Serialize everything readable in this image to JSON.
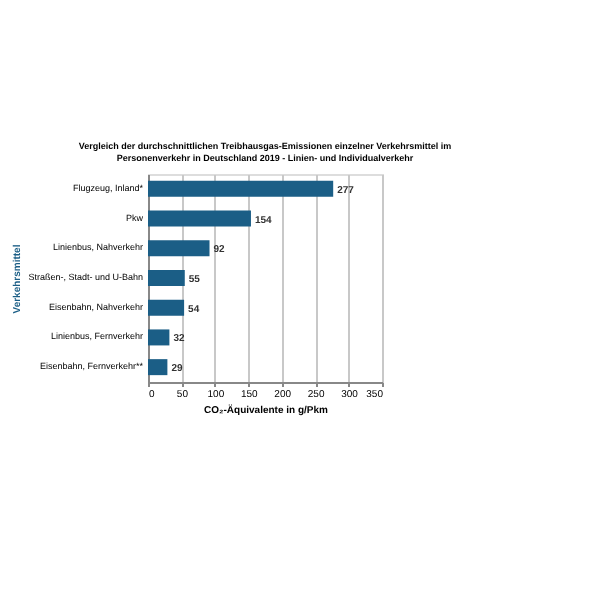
{
  "chart_data": {
    "type": "bar",
    "orientation": "horizontal",
    "title": "Vergleich der durchschnittlichen Treibhausgas-Emissionen einzelner Verkehrsmittel im Personenverkehr in Deutschland 2019 - Linien- und Individualverkehr",
    "categories": [
      "Flugzeug, Inland*",
      "Pkw",
      "Linienbus, Nahverkehr",
      "Straßen-, Stadt- und U-Bahn",
      "Eisenbahn, Nahverkehr",
      "Linienbus, Fernverkehr",
      "Eisenbahn, Fernverkehr**"
    ],
    "values": [
      277,
      154,
      92,
      55,
      54,
      32,
      29
    ],
    "color": "#1b5e86",
    "data_labels": true,
    "xlim": [
      0,
      350
    ],
    "xticks": [
      0,
      50,
      100,
      150,
      200,
      250,
      300,
      350
    ],
    "grid": "x",
    "xlabel": "CO₂-Äquivalente in g/Pkm",
    "ylabel": "Verkehrsmittel"
  }
}
